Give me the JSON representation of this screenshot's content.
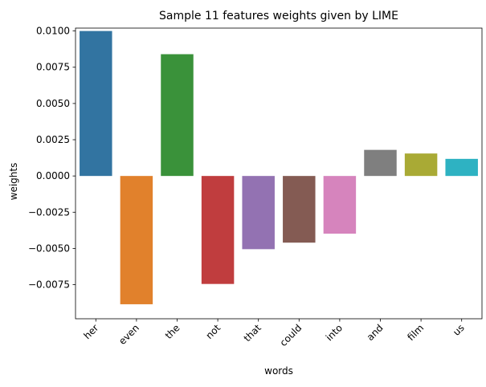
{
  "chart_data": {
    "type": "bar",
    "title": "Sample 11 features weights given by LIME",
    "xlabel": "words",
    "ylabel": "weights",
    "categories": [
      "her",
      "even",
      "the",
      "not",
      "that",
      "could",
      "into",
      "and",
      "film",
      "us"
    ],
    "values": [
      0.01,
      -0.00885,
      0.0084,
      -0.00745,
      -0.00505,
      -0.0046,
      -0.00398,
      0.0018,
      0.00155,
      0.00118
    ],
    "colors": [
      "#3274a1",
      "#e1812c",
      "#3a923a",
      "#c03d3e",
      "#9372b2",
      "#845b53",
      "#d684bd",
      "#7f7f7f",
      "#a9aa35",
      "#2eb2c2"
    ],
    "ylim": [
      -0.00985,
      0.0102
    ],
    "yticks": [
      -0.0075,
      -0.005,
      -0.0025,
      0.0,
      0.0025,
      0.005,
      0.0075,
      0.01
    ],
    "ytick_labels": [
      "−0.0075",
      "−0.0050",
      "−0.0025",
      "0.0000",
      "0.0025",
      "0.0050",
      "0.0075",
      "0.0100"
    ],
    "grid": false,
    "legend": "none"
  }
}
